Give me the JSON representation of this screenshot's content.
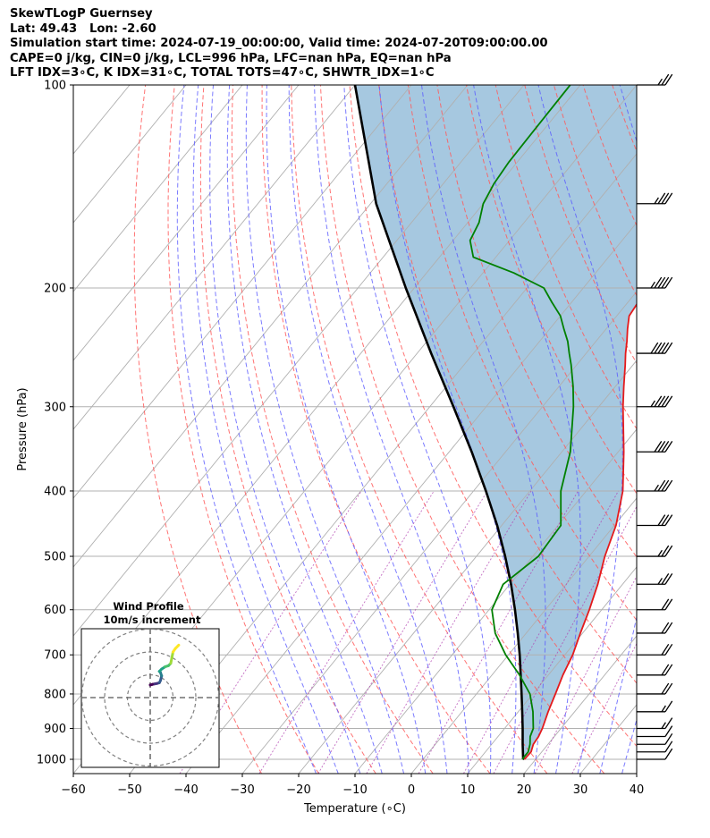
{
  "header": {
    "line1": "SkewTLogP Guernsey",
    "line2": "Lat: 49.43   Lon: -2.60",
    "line3": "Simulation start time: 2024-07-19_00:00:00, Valid time: 2024-07-20T09:00:00.00",
    "line4": "CAPE=0 j/kg, CIN=0 j/kg, LCL=996 hPa, LFC=nan hPa, EQ=nan hPa",
    "line5": "LFT IDX=3∘C, K IDX=31∘C, TOTAL TOTS=47∘C, SHWTR_IDX=1∘C"
  },
  "chart_data": {
    "type": "line",
    "subtype": "skew-t log-p",
    "xlabel": "Temperature (∘C)",
    "ylabel": "Pressure (hPa)",
    "xlim": [
      -60,
      40
    ],
    "ylim": [
      1050,
      100
    ],
    "yscale": "log",
    "x_ticks": [
      "−60",
      "−50",
      "−40",
      "−30",
      "−20",
      "−10",
      "0",
      "10",
      "20",
      "30",
      "40"
    ],
    "y_ticks": [
      1000,
      900,
      800,
      700,
      600,
      500,
      400,
      300,
      200,
      100
    ],
    "grid": true,
    "colors": {
      "temperature": "#e41a1c",
      "dewpoint": "#008000",
      "parcel": "#000000",
      "cape_fill": "#a6c8e0",
      "dry_adiabat": "#ff5a5a",
      "moist_adiabat": "#5a5aff",
      "mixing_ratio": "#b040b0",
      "isotherm": "#b0b0b0"
    },
    "temperature": {
      "pressure": [
        1000,
        975,
        950,
        925,
        900,
        850,
        800,
        750,
        700,
        650,
        600,
        550,
        500,
        450,
        400,
        350,
        300,
        280,
        260,
        250,
        240,
        230,
        220,
        210,
        200,
        190,
        180,
        170,
        160,
        150,
        140,
        130,
        120,
        110,
        100
      ],
      "values": [
        18.0,
        18.1,
        17.4,
        17.2,
        16.7,
        15.3,
        14.0,
        12.6,
        11.4,
        9.6,
        7.8,
        5.6,
        2.8,
        0.3,
        -3.5,
        -9.0,
        -15.7,
        -18.5,
        -21.4,
        -23.0,
        -24.5,
        -26.2,
        -27.8,
        -28.2,
        -28.6,
        -28.5,
        -27.6,
        -26.6,
        -25.6,
        -25.5,
        -25.6,
        -24.5,
        -23.2,
        -21.6,
        -20.5
      ]
    },
    "dewpoint": {
      "pressure": [
        1000,
        975,
        950,
        925,
        900,
        850,
        800,
        750,
        700,
        650,
        600,
        550,
        500,
        450,
        400,
        350,
        300,
        280,
        260,
        250,
        240,
        230,
        220,
        210,
        200,
        190,
        180,
        170,
        160,
        150,
        140,
        130,
        120,
        110,
        100
      ],
      "values": [
        17.6,
        17.6,
        16.8,
        15.7,
        15.1,
        12.6,
        9.5,
        4.9,
        -0.5,
        -5.5,
        -9.5,
        -11.2,
        -9.0,
        -9.5,
        -14.5,
        -18.5,
        -24.5,
        -27.5,
        -31.0,
        -33.0,
        -35.0,
        -37.5,
        -40.0,
        -43.5,
        -47.0,
        -54.5,
        -64.0,
        -67.0,
        -68.0,
        -70.0,
        -71.0,
        -71.5,
        -71.6,
        -71.7,
        -71.8
      ]
    },
    "parcel": {
      "pressure": [
        1000,
        996,
        950,
        900,
        850,
        800,
        750,
        700,
        650,
        600,
        550,
        500,
        450,
        400,
        350,
        300,
        250,
        200,
        150,
        100
      ],
      "values": [
        18.0,
        17.6,
        15.5,
        13.2,
        10.7,
        8.0,
        5.1,
        2.0,
        -1.5,
        -5.4,
        -9.8,
        -14.9,
        -20.8,
        -27.8,
        -36.0,
        -45.8,
        -57.5,
        -71.5,
        -89.0,
        -110.0
      ]
    },
    "wind_barbs": {
      "pressure": [
        1000,
        975,
        950,
        925,
        900,
        850,
        800,
        750,
        700,
        650,
        600,
        550,
        500,
        450,
        400,
        350,
        300,
        250,
        200,
        150,
        100
      ],
      "speed_kt": [
        10,
        10,
        10,
        10,
        15,
        15,
        20,
        20,
        20,
        20,
        20,
        25,
        25,
        30,
        35,
        40,
        45,
        50,
        45,
        35,
        25
      ],
      "direction_deg": [
        270,
        270,
        270,
        270,
        270,
        270,
        270,
        270,
        270,
        270,
        270,
        270,
        270,
        270,
        270,
        270,
        270,
        270,
        270,
        270,
        270
      ]
    },
    "hodograph": {
      "title": "Wind Profile",
      "subtitle": "10m/s increment",
      "rings_ms": [
        10,
        20,
        30
      ],
      "u": [
        0.0,
        1.0,
        2.0,
        3.0,
        4.0,
        4.5,
        5.0,
        4.5,
        4.0,
        5.0,
        6.5,
        8.0,
        9.0,
        9.5,
        10.0,
        11.0,
        12.5
      ],
      "v": [
        5.5,
        5.8,
        6.0,
        6.2,
        6.5,
        7.5,
        9.5,
        11.0,
        11.5,
        12.5,
        13.5,
        14.0,
        15.0,
        17.5,
        20.0,
        21.5,
        23.0
      ]
    }
  }
}
